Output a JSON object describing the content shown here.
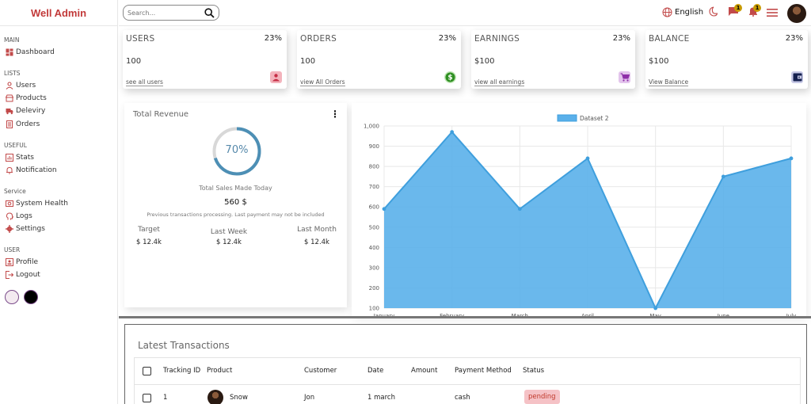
{
  "app": {
    "title": "Well Admin"
  },
  "sidebar": {
    "sections": [
      {
        "title": "MAIN",
        "items": [
          {
            "label": "Dashboard",
            "icon": "dashboard-icon"
          }
        ]
      },
      {
        "title": "LISTS",
        "items": [
          {
            "label": "Users",
            "icon": "user-icon"
          },
          {
            "label": "Products",
            "icon": "store-icon"
          },
          {
            "label": "Deleviry",
            "icon": "truck-icon"
          },
          {
            "label": "Orders",
            "icon": "orders-icon"
          }
        ]
      },
      {
        "title": "USEFUL",
        "items": [
          {
            "label": "Stats",
            "icon": "chart-icon"
          },
          {
            "label": "Notification",
            "icon": "bell-icon"
          }
        ]
      },
      {
        "title": "Service",
        "items": [
          {
            "label": "System Health",
            "icon": "health-icon"
          },
          {
            "label": "Logs",
            "icon": "psychology-icon"
          },
          {
            "label": "Settings",
            "icon": "gear-icon"
          }
        ]
      },
      {
        "title": "USER",
        "items": [
          {
            "label": "Profile",
            "icon": "profile-icon"
          },
          {
            "label": "Logout",
            "icon": "logout-icon"
          }
        ]
      }
    ],
    "theme_colors": [
      "#f3eaf0",
      "#000000"
    ]
  },
  "topbar": {
    "search_placeholder": "Search...",
    "language": "English",
    "chat_badge": "1",
    "notification_badge": "1"
  },
  "widgets": [
    {
      "title": "USERS",
      "percent": "23%",
      "value": "100",
      "link": "see all users",
      "icon": "person-icon",
      "icon_color": "#d94b5b"
    },
    {
      "title": "ORDERS",
      "percent": "23%",
      "value": "100",
      "link": "view All Orders",
      "icon": "dollar-icon",
      "icon_color": "#3a9a2a"
    },
    {
      "title": "EARNINGS",
      "percent": "23%",
      "value": "$100",
      "link": "view all earnings",
      "icon": "cart-icon",
      "icon_color": "#a24fb8"
    },
    {
      "title": "BALANCE",
      "percent": "23%",
      "value": "$100",
      "link": "View Balance",
      "icon": "wallet-icon",
      "icon_color": "#1c2a5c"
    }
  ],
  "featured": {
    "title": "Total Revenue",
    "progress": 0.7,
    "progress_text": "70%",
    "subtitle": "Total Sales Made Today",
    "amount": "560 $",
    "description": "Previous transactions processing. Last payment may not be included",
    "stats": [
      {
        "label": "Target",
        "amount": "$ 12.4k"
      },
      {
        "label": "Last Week",
        "amount": "$ 12.4k"
      },
      {
        "label": "Last Month",
        "amount": "$ 12.4k"
      }
    ]
  },
  "chart_data": {
    "type": "area",
    "categories": [
      "January",
      "February",
      "March",
      "April",
      "May",
      "June",
      "July"
    ],
    "series": [
      {
        "name": "Dataset 2",
        "values": [
          590,
          970,
          590,
          840,
          100,
          750,
          840
        ],
        "color": "#5ab0ea"
      }
    ],
    "yticks": [
      "1,000",
      "900",
      "800",
      "700",
      "600",
      "500",
      "400",
      "300",
      "200",
      "100"
    ],
    "ylim": [
      100,
      1000
    ],
    "grid": true,
    "legend": "top"
  },
  "transactions": {
    "title": "Latest Transactions",
    "columns": [
      "Tracking ID",
      "Product",
      "Customer",
      "Date",
      "Amount",
      "Payment Method",
      "Status"
    ],
    "rows": [
      {
        "tracking_id": "1",
        "product": "Snow",
        "customer": "Jon",
        "date": "1 march",
        "amount": "",
        "payment": "cash",
        "status": "pending"
      }
    ]
  }
}
